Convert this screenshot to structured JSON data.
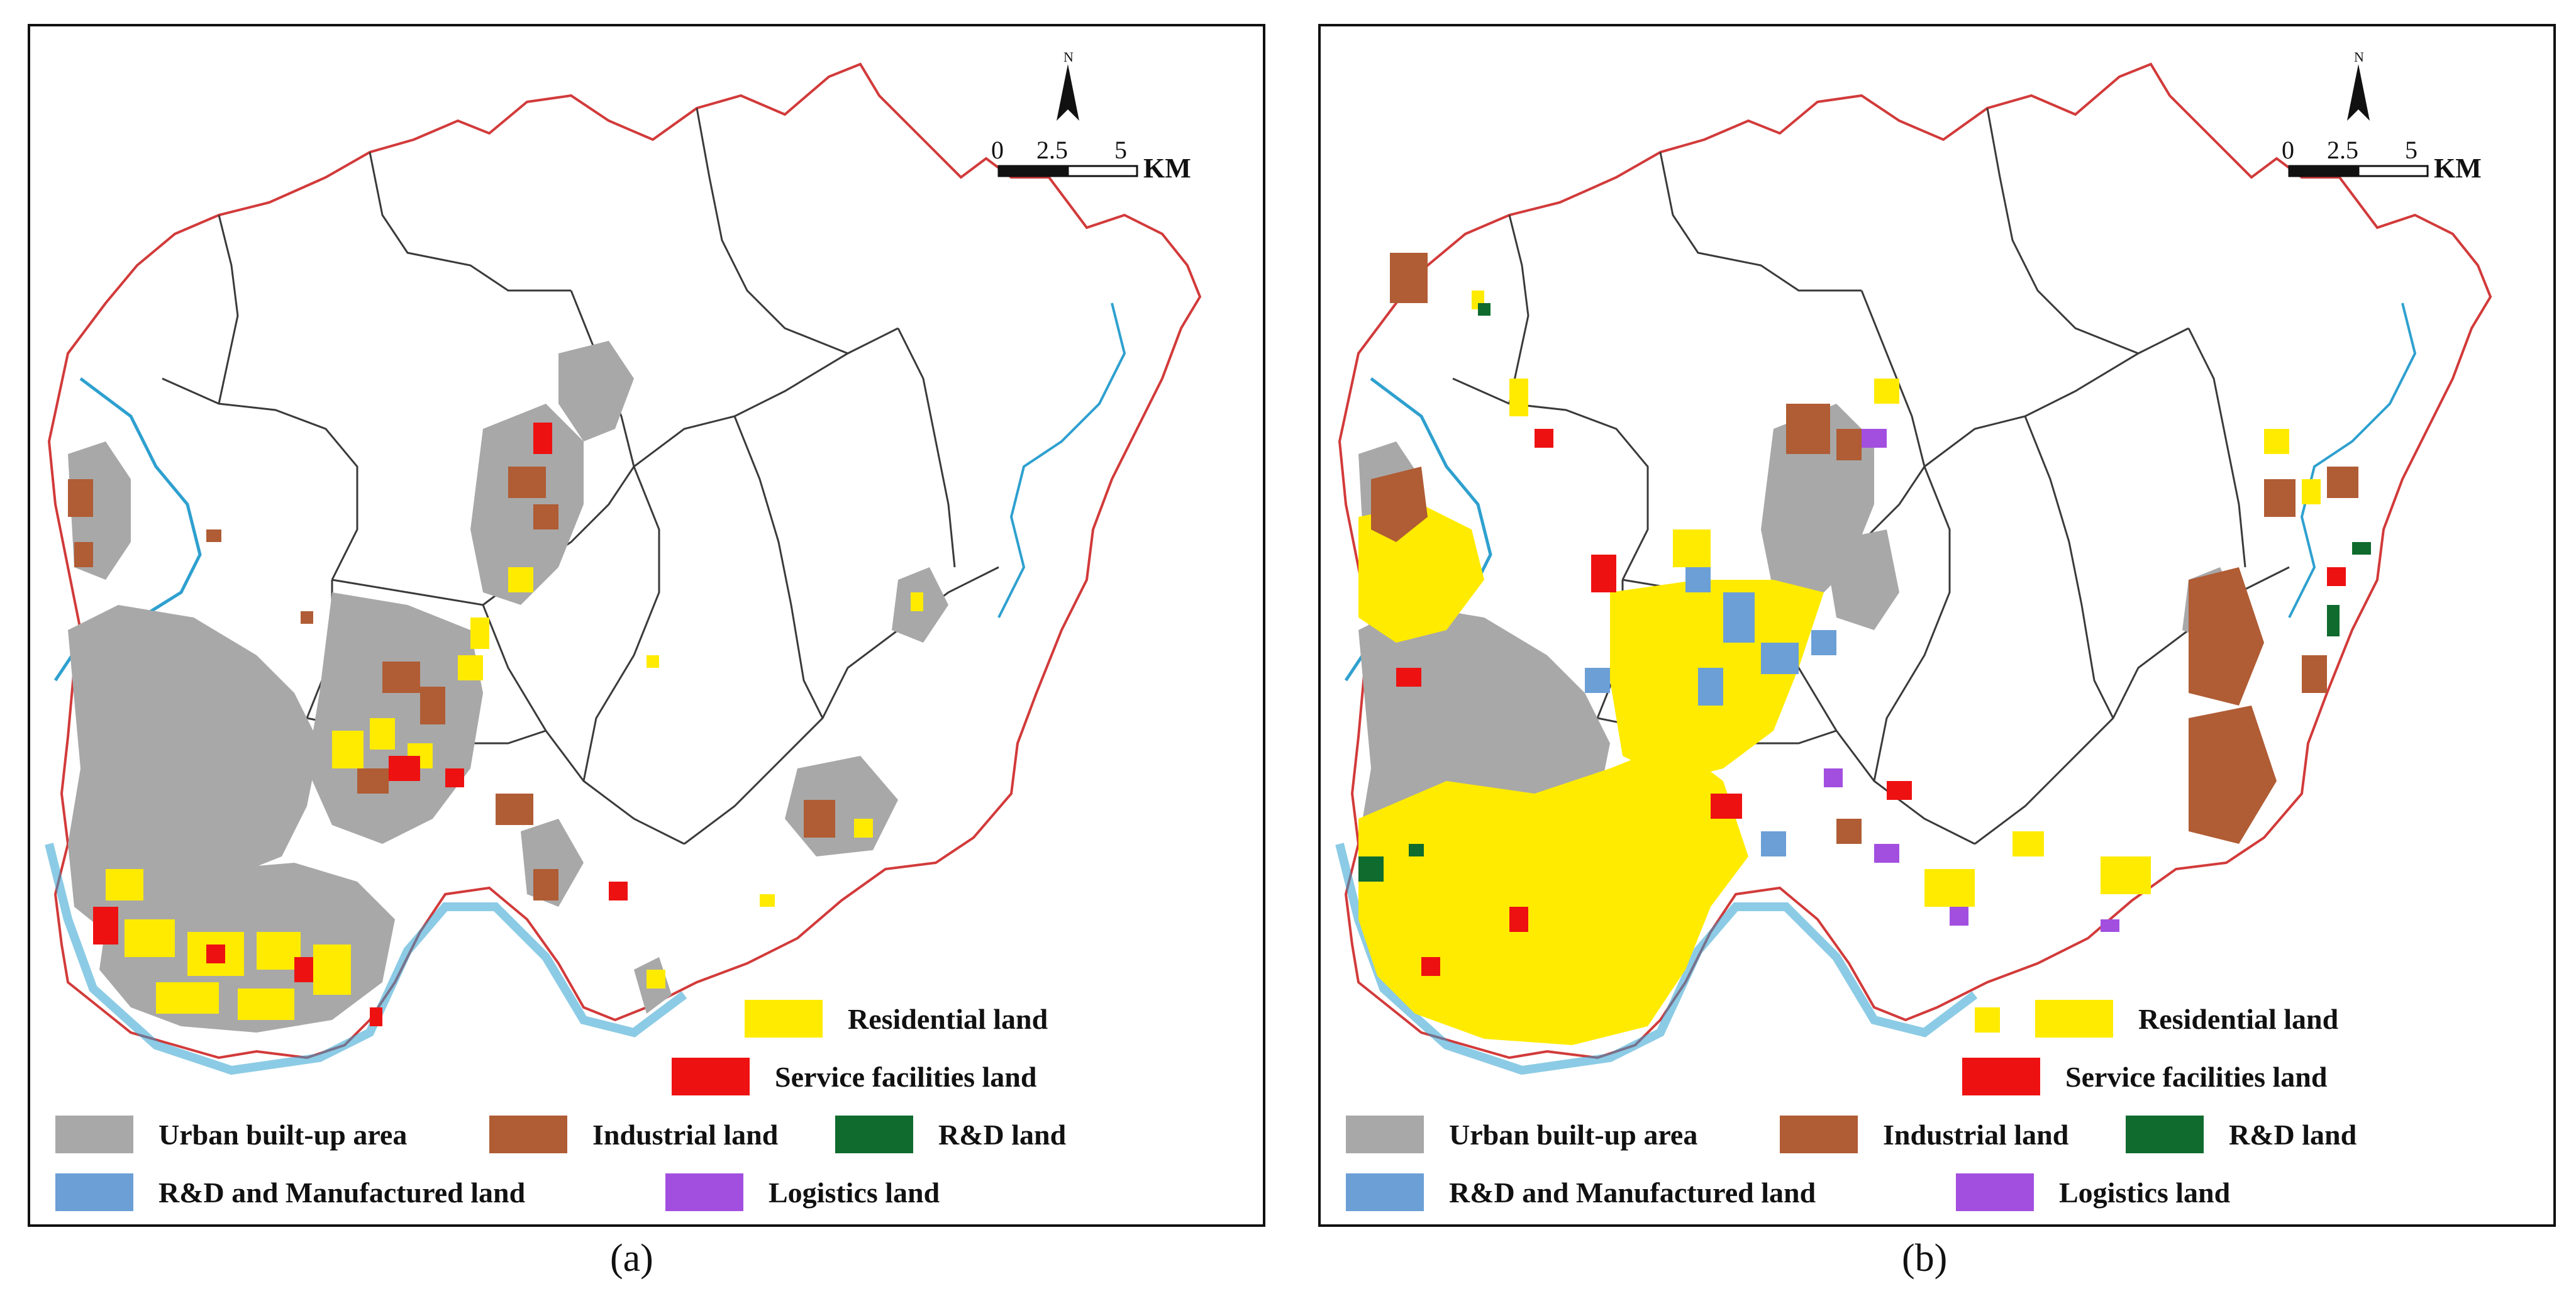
{
  "panels": [
    {
      "id": "a",
      "caption": "(a)",
      "north_label": "N",
      "scale": {
        "ticks": [
          "0",
          "2.5",
          "5"
        ],
        "unit": "KM"
      },
      "legend": [
        {
          "key": "residential",
          "label": "Residential land",
          "color": "#ffeb00"
        },
        {
          "key": "service",
          "label": "Service facilities land",
          "color": "#ee1111"
        },
        {
          "key": "urban",
          "label": "Urban built-up area",
          "color": "#a8a8a8"
        },
        {
          "key": "industrial",
          "label": "Industrial land",
          "color": "#b05c34"
        },
        {
          "key": "rnd",
          "label": "R&D land",
          "color": "#0f6b2e"
        },
        {
          "key": "rnd_manuf",
          "label": "R&D and Manufactured land",
          "color": "#6b9fd6"
        },
        {
          "key": "logistics",
          "label": "Logistics land",
          "color": "#a24fe0"
        }
      ]
    },
    {
      "id": "b",
      "caption": "(b)",
      "north_label": "N",
      "scale": {
        "ticks": [
          "0",
          "2.5",
          "5"
        ],
        "unit": "KM"
      },
      "legend": [
        {
          "key": "residential",
          "label": "Residential land",
          "color": "#ffeb00"
        },
        {
          "key": "service",
          "label": "Service facilities land",
          "color": "#ee1111"
        },
        {
          "key": "urban",
          "label": "Urban built-up area",
          "color": "#a8a8a8"
        },
        {
          "key": "industrial",
          "label": "Industrial land",
          "color": "#b05c34"
        },
        {
          "key": "rnd",
          "label": "R&D land",
          "color": "#0f6b2e"
        },
        {
          "key": "rnd_manuf",
          "label": "R&D and Manufactured land",
          "color": "#6b9fd6"
        },
        {
          "key": "logistics",
          "label": "Logistics land",
          "color": "#a24fe0"
        }
      ]
    }
  ],
  "colors": {
    "boundary_outer": "#d23a3a",
    "boundary_inner": "#3a3a3a",
    "river": "#2ea0cf",
    "river_fill": "#aee0f2"
  }
}
